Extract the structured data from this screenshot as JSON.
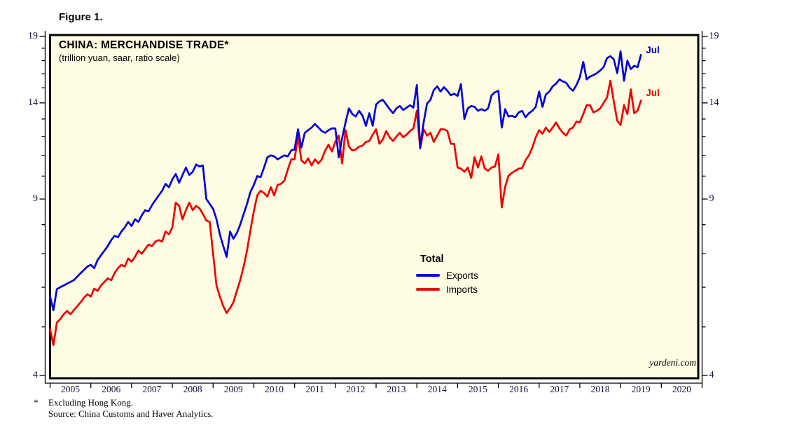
{
  "figure_label": "Figure 1.",
  "chart": {
    "title": "CHINA: MERCHANDISE TRADE*",
    "subtitle": "(trillion yuan, saar, ratio scale)",
    "watermark": "yardeni.com",
    "legend": {
      "title": "Total",
      "items": [
        {
          "label": "Exports",
          "color": "#0000dd"
        },
        {
          "label": "Imports",
          "color": "#ee0000"
        }
      ]
    },
    "end_labels": [
      {
        "text": "Jul",
        "color": "#0000dd"
      },
      {
        "text": "Jul",
        "color": "#ee0000"
      }
    ]
  },
  "footnote_marker": "*",
  "footnotes": [
    "Excluding Hong Kong.",
    "Source: China Customs and Haver Analytics."
  ],
  "colors": {
    "plot_background": "#fefce2",
    "frame": "#000000",
    "axis_text": "#14143c",
    "exports_line": "#0000dd",
    "imports_line": "#ee0000"
  },
  "chart_data": {
    "type": "line",
    "title": "CHINA: MERCHANDISE TRADE*",
    "subtitle": "(trillion yuan, saar, ratio scale)",
    "x_start": "2005-01",
    "x_end": "2019-07",
    "x_frequency": "monthly",
    "x_tick_years": [
      2005,
      2006,
      2007,
      2008,
      2009,
      2010,
      2011,
      2012,
      2013,
      2014,
      2015,
      2016,
      2017,
      2018,
      2019,
      2020
    ],
    "y_axis": {
      "scale": "log",
      "range": [
        4,
        19
      ],
      "labeled_ticks": [
        4,
        9,
        14,
        19
      ],
      "minor_ticks": [
        5,
        6,
        7,
        8,
        10,
        11,
        12,
        13,
        15,
        16,
        17,
        18
      ],
      "unit": "trillion yuan, saar"
    },
    "legend_position": "center-right",
    "grid": false,
    "series": [
      {
        "name": "Exports",
        "color": "#0000dd",
        "monthly_values": [
          5.75,
          5.4,
          5.95,
          6.0,
          6.05,
          6.1,
          6.15,
          6.2,
          6.3,
          6.4,
          6.5,
          6.6,
          6.65,
          6.55,
          6.8,
          6.95,
          7.1,
          7.25,
          7.45,
          7.6,
          7.55,
          7.75,
          7.9,
          8.1,
          7.95,
          8.2,
          8.1,
          8.35,
          8.55,
          8.5,
          8.75,
          8.95,
          9.15,
          9.35,
          9.65,
          9.5,
          9.85,
          10.1,
          9.7,
          10.05,
          10.4,
          10.05,
          10.2,
          10.55,
          10.45,
          10.5,
          9.0,
          8.8,
          8.6,
          8.2,
          7.65,
          7.25,
          6.9,
          7.75,
          7.5,
          7.7,
          8.0,
          8.4,
          8.8,
          9.3,
          9.6,
          10.0,
          9.95,
          10.4,
          10.9,
          11.0,
          10.95,
          10.8,
          10.9,
          11.0,
          10.95,
          11.25,
          11.3,
          12.4,
          11.4,
          12.2,
          12.35,
          12.5,
          12.7,
          12.5,
          12.3,
          12.2,
          12.35,
          12.45,
          12.45,
          10.9,
          11.9,
          12.8,
          13.65,
          13.3,
          13.15,
          13.5,
          13.2,
          12.6,
          13.35,
          12.6,
          13.9,
          14.1,
          14.2,
          13.9,
          13.6,
          13.35,
          13.65,
          13.8,
          13.55,
          13.7,
          13.85,
          13.7,
          15.2,
          11.4,
          12.8,
          13.95,
          14.2,
          14.85,
          15.1,
          14.75,
          15.05,
          14.8,
          14.5,
          14.6,
          14.45,
          15.25,
          13.0,
          13.65,
          13.8,
          13.75,
          13.5,
          13.6,
          13.5,
          13.65,
          14.5,
          14.7,
          14.8,
          12.5,
          13.6,
          13.15,
          13.2,
          13.1,
          13.4,
          13.5,
          13.1,
          13.35,
          13.5,
          13.75,
          14.75,
          13.75,
          14.55,
          14.75,
          15.1,
          15.3,
          15.6,
          15.45,
          15.35,
          15.0,
          14.8,
          15.2,
          15.75,
          16.9,
          15.6,
          15.8,
          15.9,
          16.05,
          16.25,
          16.5,
          17.2,
          17.35,
          17.1,
          16.05,
          17.75,
          15.5,
          17.0,
          16.35,
          16.6,
          16.5,
          17.45
        ]
      },
      {
        "name": "Imports",
        "color": "#ee0000",
        "monthly_values": [
          4.95,
          4.6,
          5.1,
          5.18,
          5.3,
          5.38,
          5.3,
          5.4,
          5.5,
          5.6,
          5.72,
          5.81,
          5.75,
          5.96,
          5.9,
          6.05,
          6.15,
          6.25,
          6.2,
          6.4,
          6.55,
          6.65,
          6.6,
          6.85,
          6.75,
          6.9,
          7.1,
          7.0,
          7.15,
          7.3,
          7.25,
          7.4,
          7.45,
          7.4,
          7.75,
          7.65,
          7.9,
          8.85,
          8.72,
          8.2,
          8.55,
          8.85,
          8.55,
          8.72,
          8.62,
          8.4,
          8.15,
          8.1,
          7.0,
          6.05,
          5.75,
          5.5,
          5.33,
          5.45,
          5.6,
          5.9,
          6.2,
          6.6,
          7.1,
          7.8,
          8.5,
          9.15,
          9.35,
          9.25,
          9.1,
          9.5,
          9.15,
          9.6,
          9.65,
          9.8,
          10.3,
          10.8,
          10.8,
          12.05,
          10.75,
          10.6,
          10.85,
          10.5,
          10.8,
          10.6,
          10.8,
          11.25,
          11.55,
          11.2,
          11.7,
          12.05,
          10.6,
          12.35,
          11.45,
          11.25,
          11.3,
          11.45,
          11.5,
          11.7,
          11.75,
          12.1,
          12.4,
          11.6,
          11.85,
          12.3,
          11.95,
          11.75,
          12.0,
          12.2,
          11.95,
          12.1,
          12.3,
          12.45,
          13.5,
          11.35,
          12.4,
          12.05,
          12.2,
          11.7,
          12.05,
          12.4,
          12.4,
          12.3,
          11.6,
          11.6,
          10.4,
          10.35,
          10.2,
          10.4,
          9.92,
          10.9,
          10.4,
          10.95,
          10.35,
          10.25,
          10.4,
          10.45,
          11.05,
          8.66,
          9.52,
          10.02,
          10.15,
          10.25,
          10.35,
          10.37,
          10.75,
          11.0,
          11.4,
          11.95,
          12.35,
          12.15,
          12.5,
          12.25,
          12.5,
          12.8,
          12.45,
          12.2,
          12.05,
          12.4,
          12.5,
          12.85,
          12.8,
          13.3,
          13.85,
          13.85,
          13.4,
          13.5,
          13.65,
          14.0,
          14.35,
          15.5,
          14.1,
          12.9,
          12.65,
          13.85,
          13.3,
          14.9,
          13.35,
          13.5,
          14.15
        ]
      }
    ]
  }
}
